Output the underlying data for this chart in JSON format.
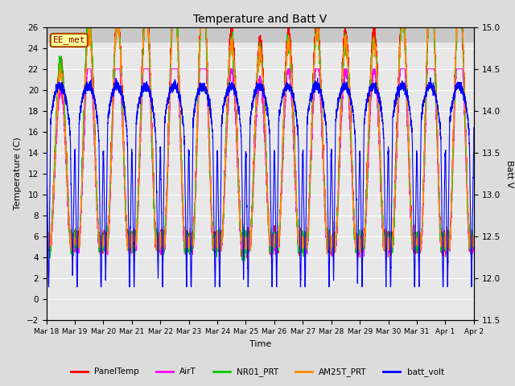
{
  "title": "Temperature and Batt V",
  "xlabel": "Time",
  "ylabel_left": "Temperature (C)",
  "ylabel_right": "Batt V",
  "annotation": "EE_met",
  "ylim_left": [
    -2,
    26
  ],
  "ylim_right": [
    11.5,
    15.0
  ],
  "yticks_left": [
    -2,
    0,
    2,
    4,
    6,
    8,
    10,
    12,
    14,
    16,
    18,
    20,
    22,
    24,
    26
  ],
  "yticks_right": [
    11.5,
    12.0,
    12.5,
    13.0,
    13.5,
    14.0,
    14.5,
    15.0
  ],
  "xtick_labels": [
    "Mar 18",
    "Mar 19",
    "Mar 20",
    "Mar 21",
    "Mar 22",
    "Mar 23",
    "Mar 24",
    "Mar 25",
    "Mar 26",
    "Mar 27",
    "Mar 28",
    "Mar 29",
    "Mar 30",
    "Mar 31",
    "Apr 1",
    "Apr 2"
  ],
  "n_days": 15,
  "background_color": "#dcdcdc",
  "plot_bg_color": "#e8e8e8",
  "plot_bg_upper": "#d0d0d0",
  "grid_color": "#ffffff",
  "legend_entries": [
    "PanelTemp",
    "AirT",
    "NR01_PRT",
    "AM25T_PRT",
    "batt_volt"
  ],
  "legend_colors": [
    "#ff0000",
    "#ff00ff",
    "#00cc00",
    "#ff8800",
    "#0000ff"
  ],
  "line_width": 0.8,
  "seed": 42
}
